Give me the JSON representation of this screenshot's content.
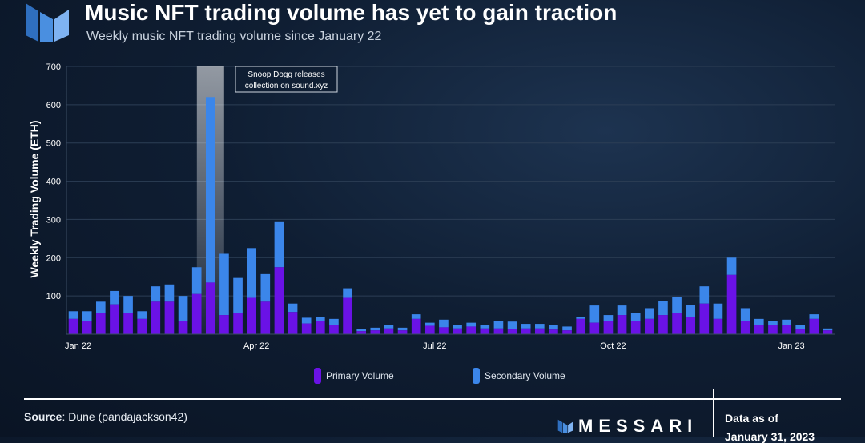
{
  "header": {
    "title": "Music NFT trading volume has yet to gain traction",
    "subtitle": "Weekly music NFT trading volume since January 22"
  },
  "colors": {
    "primary": "#6a12e6",
    "secondary": "#3b86ea",
    "background": "#0f1e33",
    "highlight": "#ffffff"
  },
  "annotation": {
    "line1": "Snoop Dogg releases",
    "line2": "collection on sound.xyz"
  },
  "legend": {
    "primary_label": "Primary Volume",
    "secondary_label": "Secondary Volume"
  },
  "footer": {
    "source_label": "Source",
    "source_text": ": Dune (pandajackson42)",
    "brand": "MESSARI",
    "data_as_of": "Data as of",
    "date": "January 31, 2023"
  },
  "chart_data": {
    "type": "bar",
    "stacked": true,
    "ylabel": "Weekly Trading Volume (ETH)",
    "xlabel": "",
    "ylim": [
      0,
      700
    ],
    "yticks": [
      100,
      200,
      300,
      400,
      500,
      600,
      700
    ],
    "grid": true,
    "legend_position": "bottom",
    "x_tick_labels": [
      {
        "label": "Jan 22",
        "index": 0
      },
      {
        "label": "Apr 22",
        "index": 13
      },
      {
        "label": "Jul 22",
        "index": 26
      },
      {
        "label": "Oct 22",
        "index": 39
      },
      {
        "label": "Jan 23",
        "index": 52
      }
    ],
    "highlight_index": 10,
    "series": [
      {
        "name": "Primary Volume",
        "values": [
          40,
          35,
          55,
          78,
          55,
          40,
          85,
          85,
          35,
          105,
          135,
          50,
          55,
          95,
          85,
          175,
          58,
          28,
          35,
          25,
          95,
          8,
          10,
          15,
          10,
          40,
          22,
          18,
          15,
          20,
          15,
          15,
          13,
          15,
          15,
          12,
          10,
          40,
          30,
          35,
          50,
          35,
          40,
          50,
          55,
          45,
          80,
          40,
          155,
          35,
          25,
          25,
          25,
          13,
          40,
          10
        ]
      },
      {
        "name": "Secondary Volume",
        "values": [
          20,
          25,
          30,
          35,
          45,
          20,
          40,
          45,
          65,
          70,
          485,
          160,
          92,
          130,
          72,
          120,
          22,
          15,
          10,
          15,
          25,
          5,
          7,
          10,
          7,
          12,
          8,
          20,
          10,
          10,
          10,
          20,
          20,
          12,
          12,
          12,
          10,
          5,
          45,
          15,
          25,
          20,
          28,
          37,
          42,
          32,
          45,
          40,
          45,
          33,
          15,
          10,
          13,
          10,
          12,
          5
        ]
      }
    ]
  }
}
